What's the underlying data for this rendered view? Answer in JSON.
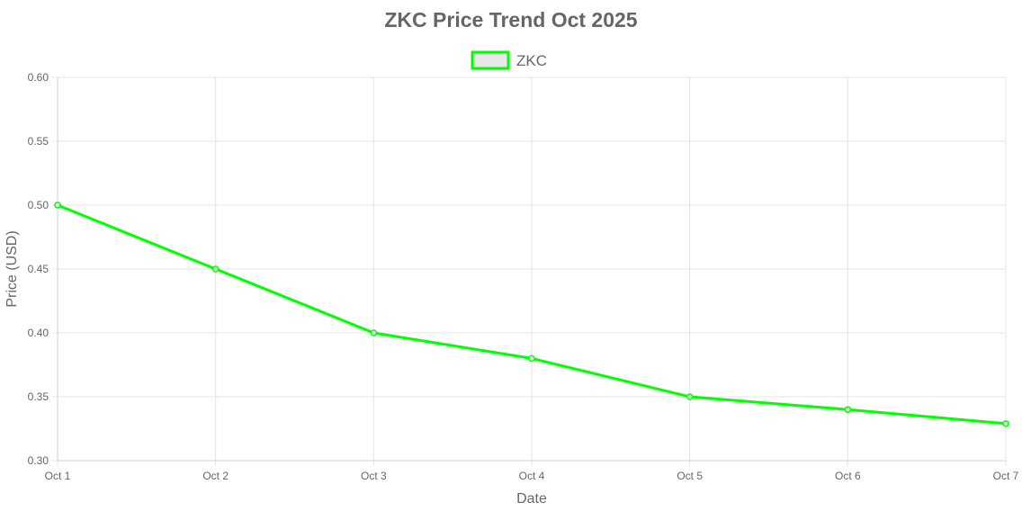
{
  "chart_data": {
    "type": "line",
    "title": "ZKC Price Trend Oct 2025",
    "xlabel": "Date",
    "ylabel": "Price (USD)",
    "categories": [
      "Oct 1",
      "Oct 2",
      "Oct 3",
      "Oct 4",
      "Oct 5",
      "Oct 6",
      "Oct 7"
    ],
    "series": [
      {
        "name": "ZKC",
        "values": [
          0.5,
          0.45,
          0.4,
          0.38,
          0.35,
          0.34,
          0.329
        ],
        "color": "#00ff00"
      }
    ],
    "ylim": [
      0.3,
      0.6
    ],
    "yticks": [
      "0.30",
      "0.35",
      "0.40",
      "0.45",
      "0.50",
      "0.55",
      "0.60"
    ],
    "grid": true,
    "legend_position": "top-center"
  }
}
